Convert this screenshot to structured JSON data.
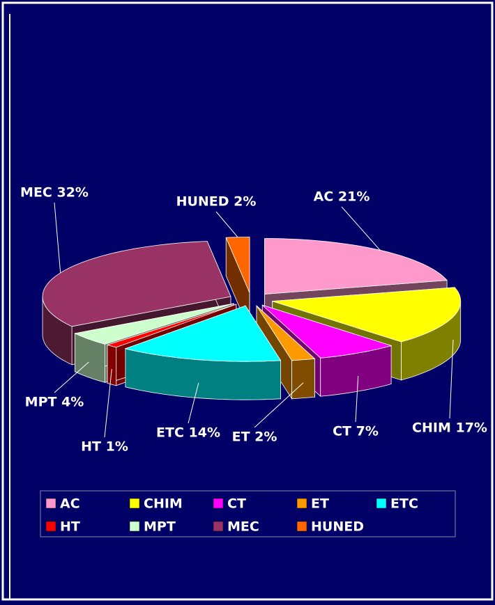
{
  "chart_data": {
    "type": "pie3d",
    "categories": [
      "AC",
      "CHIM",
      "CT",
      "ET",
      "ETC",
      "HT",
      "MPT",
      "MEC",
      "HUNED"
    ],
    "values": [
      21,
      17,
      7,
      2,
      14,
      1,
      4,
      32,
      2
    ],
    "value_labels": [
      "AC 21%",
      "CHIM 17%",
      "CT 7%",
      "ET 2%",
      "ETC 14%",
      "HT 1%",
      "MPT 4%",
      "MEC 32%",
      "HUNED 2%"
    ],
    "colors": [
      "#ff99cc",
      "#ffff00",
      "#ff00ff",
      "#ff9900",
      "#00ffff",
      "#ff0000",
      "#ccffcc",
      "#993366",
      "#ff6600"
    ],
    "legend": "bottom"
  }
}
